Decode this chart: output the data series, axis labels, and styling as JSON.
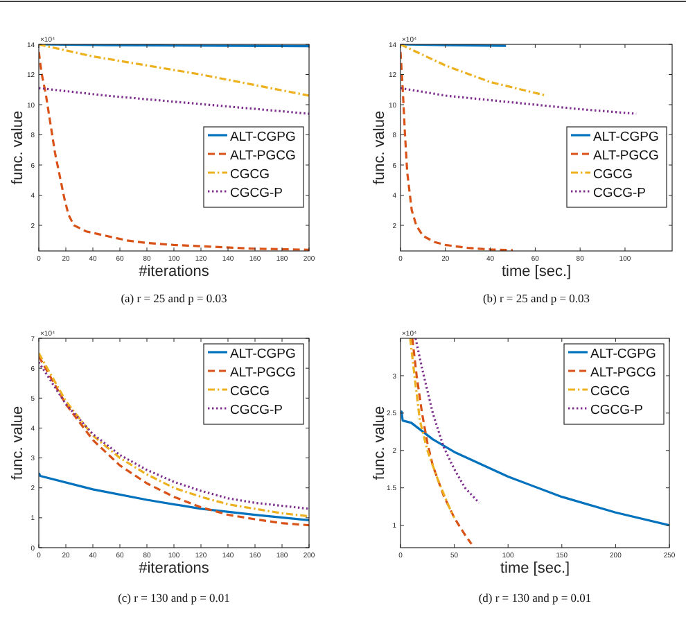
{
  "chart_data": [
    {
      "type": "line",
      "title": "(a) r = 25 and p = 0.03",
      "xlabel": "#iterations",
      "ylabel": "func. value",
      "annotations": [
        "×10⁴"
      ],
      "xlim": [
        0,
        200
      ],
      "ylim": [
        0.3,
        14
      ],
      "xticks": [
        0,
        20,
        40,
        60,
        80,
        100,
        120,
        140,
        160,
        180,
        200
      ],
      "yticks": [
        2,
        4,
        6,
        8,
        10,
        12,
        14
      ],
      "legend": "right",
      "series": [
        {
          "name": "ALT-CGPG",
          "color": "#0072bd",
          "line_style": "solid",
          "x": [
            0,
            50,
            100,
            150,
            200
          ],
          "values": [
            14,
            13.95,
            13.92,
            13.9,
            13.88
          ]
        },
        {
          "name": "ALT-PGCG",
          "color": "#d95319",
          "line_style": "dashed",
          "x": [
            0,
            2,
            5,
            12,
            19,
            22,
            26,
            35,
            50,
            65,
            80,
            100,
            128,
            160,
            200
          ],
          "values": [
            13.5,
            12.1,
            10.8,
            6.8,
            3.75,
            2.7,
            2,
            1.6,
            1.3,
            1.0,
            0.83,
            0.7,
            0.58,
            0.45,
            0.38
          ]
        },
        {
          "name": "CGCG",
          "color": "#edb120",
          "line_style": "dashdot",
          "x": [
            0,
            40,
            80,
            120,
            160,
            200
          ],
          "values": [
            14,
            13.2,
            12.6,
            12.0,
            11.3,
            10.6
          ]
        },
        {
          "name": "CGCG-P",
          "color": "#7e2f8e",
          "line_style": "dotted",
          "x": [
            0,
            50,
            100,
            150,
            200
          ],
          "values": [
            11.1,
            10.6,
            10.2,
            9.8,
            9.4
          ]
        }
      ]
    },
    {
      "type": "line",
      "title": "(b) r = 25 and p = 0.03",
      "xlabel": "time [sec.]",
      "ylabel": "func. value",
      "annotations": [
        "×10⁴"
      ],
      "xlim": [
        0,
        121
      ],
      "ylim": [
        0.3,
        14
      ],
      "xticks": [
        0,
        20,
        40,
        60,
        80,
        100
      ],
      "yticks": [
        2,
        4,
        6,
        8,
        10,
        12,
        14
      ],
      "legend": "right",
      "series": [
        {
          "name": "ALT-CGPG",
          "color": "#0072bd",
          "line_style": "solid",
          "x": [
            0,
            20,
            47
          ],
          "values": [
            14,
            13.95,
            13.9
          ]
        },
        {
          "name": "ALT-PGCG",
          "color": "#d95319",
          "line_style": "dashed",
          "x": [
            0,
            1,
            2,
            3,
            5,
            7,
            10,
            15,
            20,
            30,
            40,
            50
          ],
          "values": [
            13.5,
            11,
            8,
            5.5,
            3,
            2,
            1.3,
            0.9,
            0.7,
            0.5,
            0.4,
            0.35
          ]
        },
        {
          "name": "CGCG",
          "color": "#edb120",
          "line_style": "dashdot",
          "x": [
            0,
            20,
            40,
            65
          ],
          "values": [
            14,
            12.6,
            11.5,
            10.6
          ]
        },
        {
          "name": "CGCG-P",
          "color": "#7e2f8e",
          "line_style": "dotted",
          "x": [
            0,
            20,
            40,
            60,
            80,
            105
          ],
          "values": [
            11.1,
            10.6,
            10.3,
            10,
            9.7,
            9.4
          ]
        }
      ]
    },
    {
      "type": "line",
      "title": "(c) r = 130 and p = 0.01",
      "xlabel": "#iterations",
      "ylabel": "func. value",
      "annotations": [
        "×10⁴"
      ],
      "xlim": [
        0,
        200
      ],
      "ylim": [
        0,
        7
      ],
      "xticks": [
        0,
        20,
        40,
        60,
        80,
        100,
        120,
        140,
        160,
        180,
        200
      ],
      "yticks": [
        0,
        1,
        2,
        3,
        4,
        5,
        6,
        7
      ],
      "legend": "top right",
      "series": [
        {
          "name": "ALT-CGPG",
          "color": "#0072bd",
          "line_style": "solid",
          "x": [
            0,
            1,
            40,
            80,
            120,
            160,
            200
          ],
          "values": [
            2.5,
            2.4,
            1.95,
            1.6,
            1.3,
            1.1,
            0.92
          ]
        },
        {
          "name": "ALT-PGCG",
          "color": "#d95319",
          "line_style": "dashed",
          "x": [
            0,
            20,
            40,
            60,
            80,
            100,
            120,
            140,
            160,
            180,
            200
          ],
          "values": [
            6.4,
            4.8,
            3.6,
            2.75,
            2.15,
            1.7,
            1.35,
            1.1,
            0.95,
            0.82,
            0.75
          ]
        },
        {
          "name": "CGCG",
          "color": "#edb120",
          "line_style": "dashdot",
          "x": [
            0,
            20,
            40,
            60,
            80,
            100,
            120,
            140,
            160,
            180,
            200
          ],
          "values": [
            6.5,
            4.9,
            3.75,
            3.0,
            2.45,
            2.0,
            1.7,
            1.45,
            1.3,
            1.15,
            1.05
          ]
        },
        {
          "name": "CGCG-P",
          "color": "#7e2f8e",
          "line_style": "dotted",
          "x": [
            0,
            20,
            40,
            60,
            80,
            100,
            120,
            140,
            160,
            180,
            200
          ],
          "values": [
            6.2,
            4.8,
            3.8,
            3.1,
            2.6,
            2.2,
            1.9,
            1.65,
            1.5,
            1.4,
            1.3
          ]
        }
      ]
    },
    {
      "type": "line",
      "title": "(d) r = 130 and p = 0.01",
      "xlabel": "time [sec.]",
      "ylabel": "func. value",
      "annotations": [
        "×10⁴"
      ],
      "xlim": [
        0,
        250
      ],
      "ylim": [
        0.7,
        3.5
      ],
      "xticks": [
        0,
        50,
        100,
        150,
        200,
        250
      ],
      "yticks": [
        1,
        1.5,
        2,
        2.5,
        3
      ],
      "legend": "top right",
      "series": [
        {
          "name": "ALT-CGPG",
          "color": "#0072bd",
          "line_style": "solid",
          "x": [
            0,
            1,
            2,
            10,
            30,
            50,
            100,
            150,
            200,
            250
          ],
          "values": [
            2.5,
            2.52,
            2.4,
            2.37,
            2.15,
            1.98,
            1.65,
            1.38,
            1.17,
            1.0
          ]
        },
        {
          "name": "ALT-PGCG",
          "color": "#d95319",
          "line_style": "dashed",
          "x": [
            11,
            15,
            20,
            25,
            30,
            40,
            50,
            60,
            66
          ],
          "values": [
            3.5,
            3.0,
            2.5,
            2.1,
            1.8,
            1.4,
            1.1,
            0.87,
            0.75
          ]
        },
        {
          "name": "CGCG",
          "color": "#edb120",
          "line_style": "dashdot",
          "x": [
            9,
            13,
            18,
            25,
            35,
            45,
            50
          ],
          "values": [
            3.5,
            3.0,
            2.4,
            2.0,
            1.6,
            1.25,
            1.1
          ]
        },
        {
          "name": "CGCG-P",
          "color": "#7e2f8e",
          "line_style": "dotted",
          "x": [
            14,
            20,
            30,
            40,
            50,
            60,
            73
          ],
          "values": [
            3.5,
            3.1,
            2.5,
            2.05,
            1.75,
            1.5,
            1.3
          ]
        }
      ]
    }
  ]
}
